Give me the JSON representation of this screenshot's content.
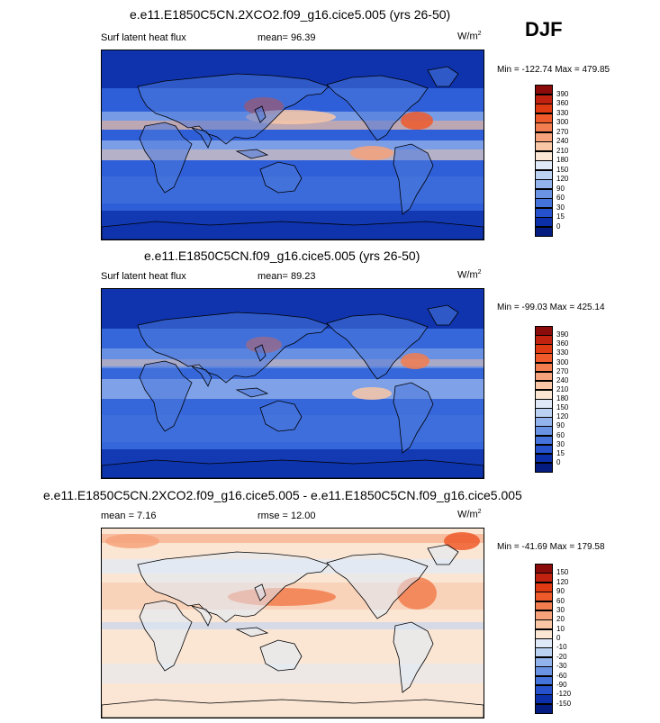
{
  "season": "DJF",
  "panels": [
    {
      "title": "e.e11.E1850C5CN.2XCO2.f09_g16.cice5.005 (yrs 26-50)",
      "left_label": "Surf latent heat flux",
      "center_label": "mean=  96.39",
      "unit": "W/m",
      "unit_sup": "2",
      "minmax": "Min = -122.74 Max = 479.85",
      "scale": "abs",
      "style": "warm"
    },
    {
      "title": "e.e11.E1850C5CN.f09_g16.cice5.005 (yrs 26-50)",
      "left_label": "Surf latent heat flux",
      "center_label": "mean=  89.23",
      "unit": "W/m",
      "unit_sup": "2",
      "minmax": "Min = -99.03 Max = 425.14",
      "scale": "abs",
      "style": "cool"
    },
    {
      "title": "e.e11.E1850C5CN.2XCO2.f09_g16.cice5.005 - e.e11.E1850C5CN.f09_g16.cice5.005",
      "left_label": "mean =   7.16",
      "center_label": "rmse =  12.00",
      "unit": "W/m",
      "unit_sup": "2",
      "minmax": "Min = -41.69 Max = 179.58",
      "scale": "diff",
      "style": "diff"
    }
  ],
  "colorbars": {
    "abs": {
      "labels": [
        "390",
        "360",
        "330",
        "300",
        "270",
        "240",
        "210",
        "180",
        "150",
        "120",
        "90",
        "60",
        "30",
        "15",
        "0"
      ],
      "colors": [
        "#8b0a0a",
        "#c0220f",
        "#e03a12",
        "#ee5a2a",
        "#f27d4e",
        "#f6a27a",
        "#f9c7a6",
        "#fbe6d4",
        "#dfe9f7",
        "#bcd2f2",
        "#92b3eb",
        "#6a93e4",
        "#4573dc",
        "#2552cc",
        "#0b2fa8",
        "#041c80"
      ]
    },
    "diff": {
      "labels": [
        "150",
        "120",
        "90",
        "60",
        "30",
        "20",
        "10",
        "0",
        "-10",
        "-20",
        "-30",
        "-60",
        "-90",
        "-120",
        "-150"
      ],
      "colors": [
        "#8b0a0a",
        "#c0220f",
        "#e03a12",
        "#ee5a2a",
        "#f27d4e",
        "#f6a27a",
        "#f9c7a6",
        "#fbe6d4",
        "#dfe9f7",
        "#bcd2f2",
        "#92b3eb",
        "#6a93e4",
        "#4573dc",
        "#2552cc",
        "#0b2fa8",
        "#041c80"
      ]
    }
  }
}
